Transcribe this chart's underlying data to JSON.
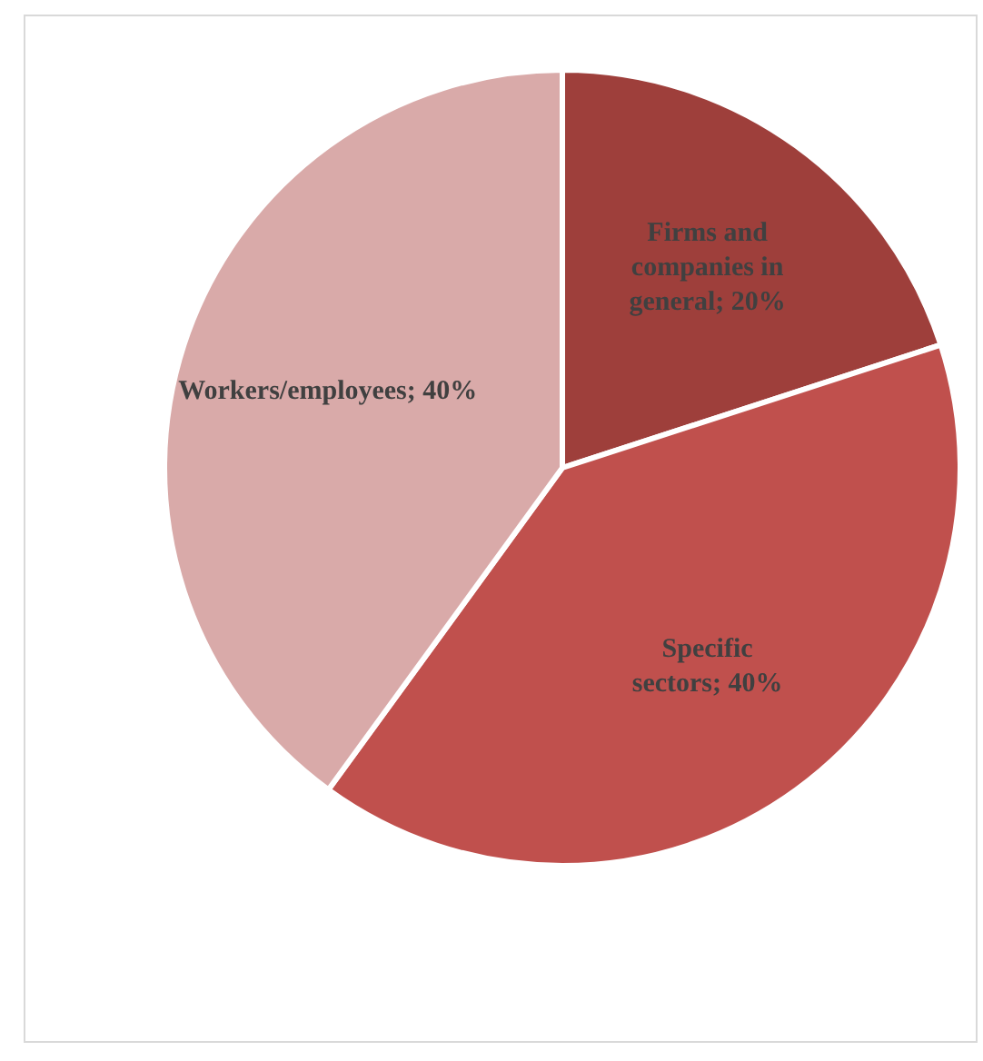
{
  "chart_data": {
    "type": "pie",
    "categories": [
      "Firms and companies in general",
      "Specific sectors",
      "Workers/employees"
    ],
    "values": [
      20,
      40,
      40
    ],
    "value_labels": [
      "20%",
      "40%",
      "40%"
    ],
    "colors": [
      "#9e3f3b",
      "#c0504d",
      "#d9aaa9"
    ],
    "legend": false
  }
}
